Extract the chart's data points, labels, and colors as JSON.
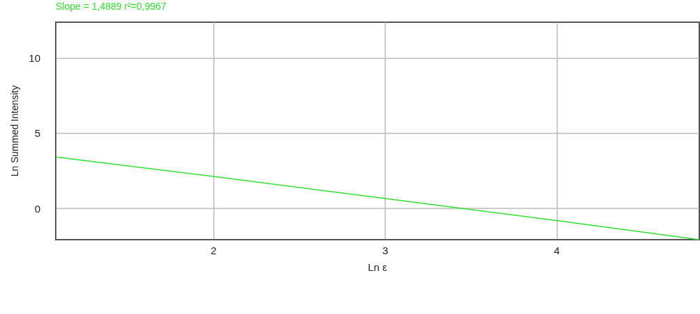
{
  "chart_data": {
    "type": "line",
    "xlabel": "Ln ε",
    "ylabel": "Ln Summed Intensity",
    "annotations": [
      "Slope = 1,4889 r²=0,9967"
    ],
    "series": [
      {
        "color": "#33dd33",
        "x": [
          1.08,
          2,
          3,
          4,
          4.83
        ],
        "values": [
          3.43,
          2.13,
          0.66,
          -0.81,
          -2.08
        ]
      }
    ],
    "xlim": [
      1.08,
      4.83
    ],
    "xticks": [
      2,
      3,
      4
    ],
    "ylim": [
      -2.08,
      12.4
    ],
    "yticks": [
      0,
      5,
      10
    ],
    "grid": true,
    "marker": "none",
    "line_style": "solid"
  }
}
